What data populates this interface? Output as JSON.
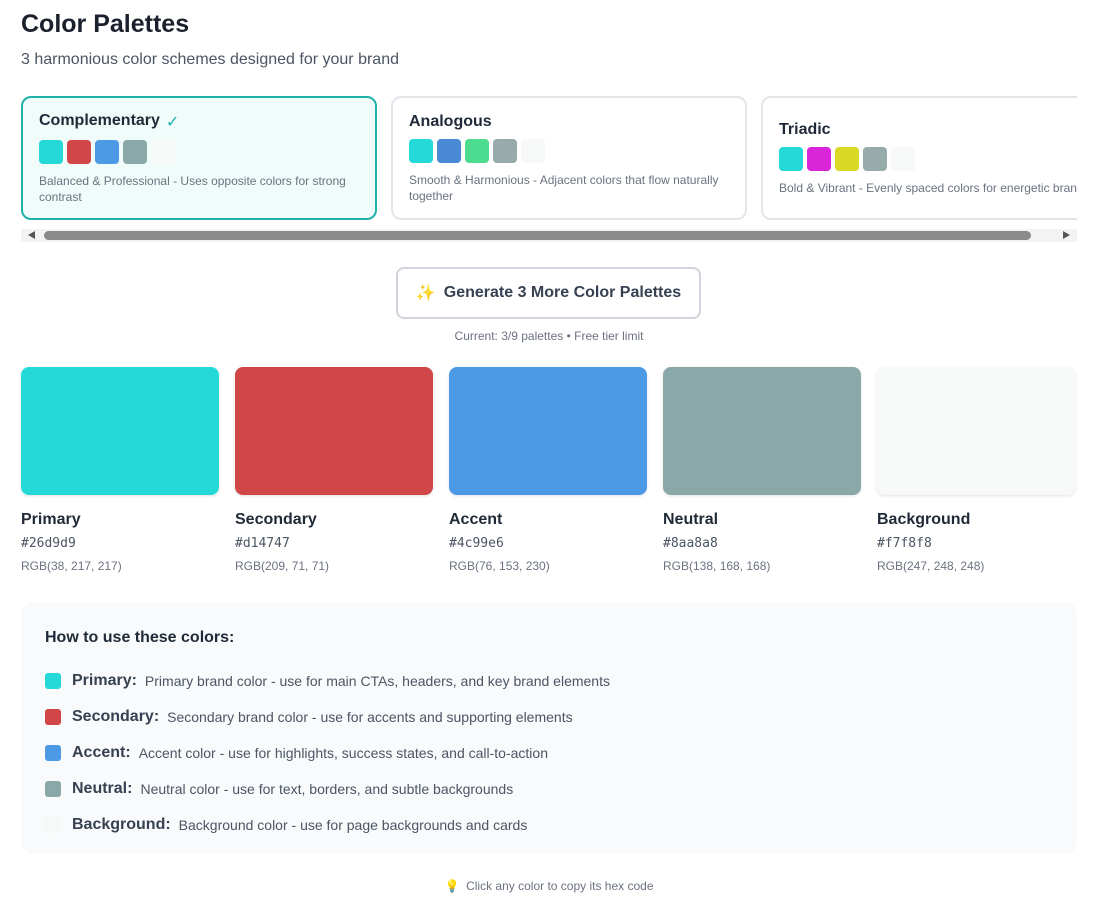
{
  "header": {
    "title": "Color Palettes",
    "subtitle": "3 harmonious color schemes designed for your brand"
  },
  "palettes": [
    {
      "name": "Complementary",
      "badge": "✓",
      "selected": true,
      "swatches": [
        "#26d9d9",
        "#d14747",
        "#4c99e6",
        "#8aa8a8",
        "#f7f8f8"
      ],
      "description": "Balanced & Professional - Uses opposite colors for strong contrast"
    },
    {
      "name": "Analogous",
      "selected": false,
      "swatches": [
        "#26d9d9",
        "#4a8ad4",
        "#4cdb8f",
        "#98abab",
        "#f7f8f8"
      ],
      "description": "Smooth & Harmonious - Adjacent colors that flow naturally together"
    },
    {
      "name": "Triadic",
      "selected": false,
      "swatches": [
        "#26d9d9",
        "#d926d9",
        "#d9d926",
        "#98abab",
        "#f7f8f8"
      ],
      "description": "Bold & Vibrant - Evenly spaced colors for energetic brands"
    }
  ],
  "generate": {
    "icon": "✨",
    "label": "Generate 3 More Color Palettes",
    "note": "Current: 3/9 palettes • Free tier limit"
  },
  "colors": [
    {
      "role": "Primary",
      "hex": "#26d9d9",
      "rgb": "RGB(38, 217, 217)"
    },
    {
      "role": "Secondary",
      "hex": "#d14747",
      "rgb": "RGB(209, 71, 71)"
    },
    {
      "role": "Accent",
      "hex": "#4c99e6",
      "rgb": "RGB(76, 153, 230)"
    },
    {
      "role": "Neutral",
      "hex": "#8aa8a8",
      "rgb": "RGB(138, 168, 168)"
    },
    {
      "role": "Background",
      "hex": "#f7f8f8",
      "rgb": "RGB(247, 248, 248)"
    }
  ],
  "usage": {
    "title": "How to use these colors:",
    "items": [
      {
        "label": "Primary:",
        "color": "#26d9d9",
        "text": "Primary brand color - use for main CTAs, headers, and key brand elements"
      },
      {
        "label": "Secondary:",
        "color": "#d14747",
        "text": "Secondary brand color - use for accents and supporting elements"
      },
      {
        "label": "Accent:",
        "color": "#4c99e6",
        "text": "Accent color - use for highlights, success states, and call-to-action"
      },
      {
        "label": "Neutral:",
        "color": "#8aa8a8",
        "text": "Neutral color - use for text, borders, and subtle backgrounds"
      },
      {
        "label": "Background:",
        "color": "#f7f8f8",
        "text": "Background color - use for page backgrounds and cards"
      }
    ]
  },
  "footer": {
    "icon": "💡",
    "text": "Click any color to copy its hex code"
  }
}
